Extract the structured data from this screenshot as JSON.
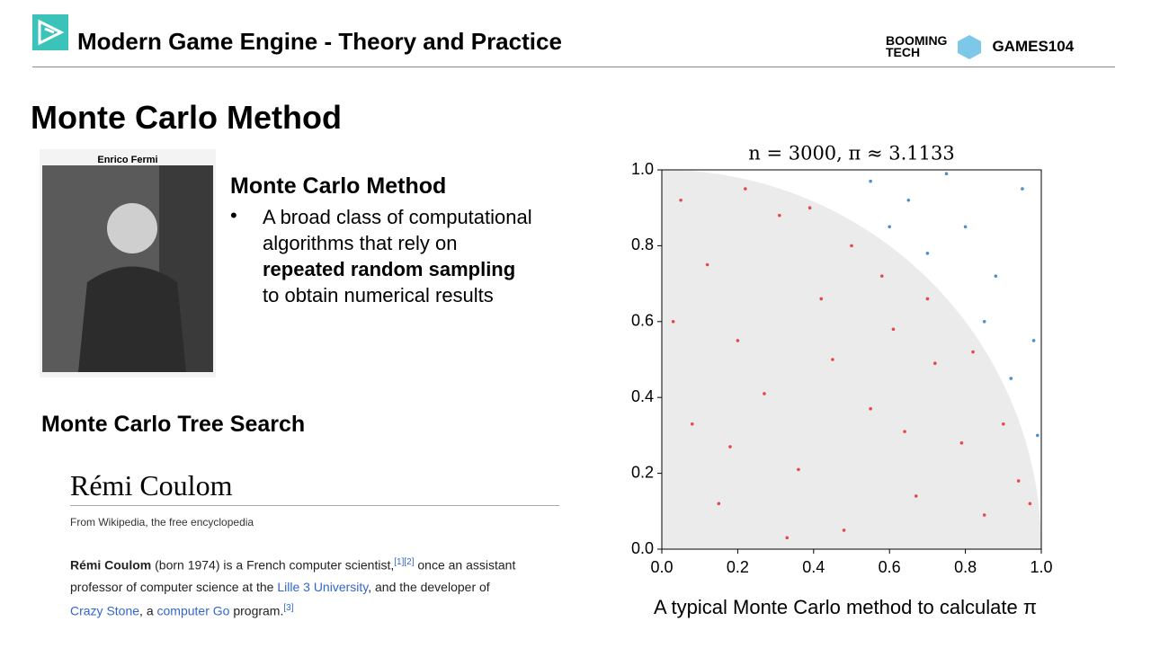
{
  "header": {
    "title": "Modern Game Engine - Theory and Practice",
    "logo1_line1": "BOOMING",
    "logo1_line2": "TECH",
    "logo2": "GAMES104"
  },
  "slide_title": "Monte Carlo Method",
  "photo_caption": "Enrico Fermi",
  "method": {
    "heading": "Monte Carlo Method",
    "bullet_text1": "A broad class of computational algorithms that rely on",
    "bullet_bold": "repeated random sampling",
    "bullet_text2": "to obtain numerical results"
  },
  "mcts_heading": "Monte Carlo Tree Search",
  "wiki": {
    "title": "Rémi Coulom",
    "tagline": "From Wikipedia, the free encyclopedia",
    "name_bold": "Rémi Coulom",
    "text1": " (born 1974) is a French computer scientist,",
    "ref1": "[1][2]",
    "text2": " once an assistant professor of computer science at the ",
    "link1": "Lille 3 University",
    "text3": ", and the developer of ",
    "link2": "Crazy Stone",
    "text4": ", a ",
    "link3": "computer Go",
    "text5": " program.",
    "ref2": "[3]"
  },
  "chart_data": {
    "type": "scatter",
    "title": "n = 3000, π ≈ 3.1133",
    "caption": "A typical Monte Carlo method to calculate π",
    "xlim": [
      0,
      1
    ],
    "ylim": [
      0,
      1
    ],
    "xticks": [
      {
        "value": 0,
        "label": "0.0"
      },
      0.2,
      0.4,
      0.6,
      0.8,
      {
        "value": 1,
        "label": "1.0"
      }
    ],
    "yticks": [
      {
        "value": 0,
        "label": "0.0"
      },
      0.2,
      0.4,
      0.6,
      0.8,
      {
        "value": 1,
        "label": "1.0"
      }
    ],
    "series": [
      {
        "color": "#e8474c",
        "x": [
          0.05,
          0.12,
          0.2,
          0.31,
          0.42,
          0.08,
          0.15,
          0.27,
          0.36,
          0.48,
          0.55,
          0.61,
          0.67,
          0.72,
          0.79,
          0.85,
          0.9,
          0.94,
          0.5,
          0.58,
          0.22,
          0.03,
          0.33,
          0.45,
          0.7,
          0.82,
          0.64,
          0.18,
          0.39,
          0.97
        ],
        "values": [
          0.92,
          0.75,
          0.55,
          0.88,
          0.66,
          0.33,
          0.12,
          0.41,
          0.21,
          0.05,
          0.37,
          0.58,
          0.14,
          0.49,
          0.28,
          0.09,
          0.33,
          0.18,
          0.8,
          0.72,
          0.95,
          0.6,
          0.03,
          0.5,
          0.66,
          0.52,
          0.31,
          0.27,
          0.9,
          0.12
        ]
      },
      {
        "color": "#4f8fc9",
        "x": [
          0.95,
          0.8,
          0.65,
          0.98,
          0.88,
          0.75,
          0.55,
          0.92,
          0.7,
          0.99,
          0.85,
          0.6
        ],
        "values": [
          0.95,
          0.85,
          0.92,
          0.55,
          0.72,
          0.99,
          0.97,
          0.45,
          0.78,
          0.3,
          0.6,
          0.85
        ]
      }
    ]
  }
}
